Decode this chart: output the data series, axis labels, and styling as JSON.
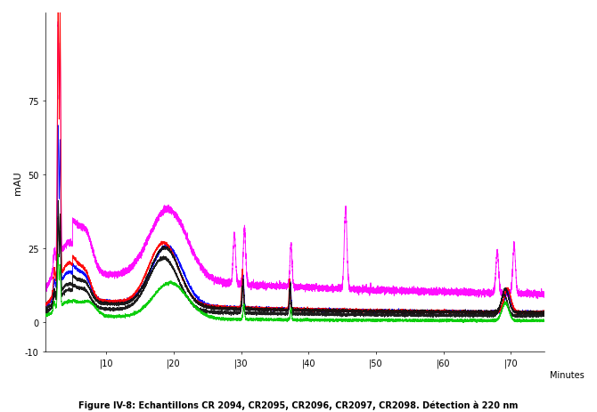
{
  "title": "Figure IV-8: Echantillons CR 2094, CR2095, CR2096, CR2097, CR2098. Détection à 220 nm",
  "xlabel": "Minutes",
  "ylabel": "mAU",
  "xlim": [
    1,
    75
  ],
  "ylim": [
    -10,
    105
  ],
  "yticks": [
    -10,
    0,
    25,
    50,
    75
  ],
  "xticks": [
    10,
    20,
    30,
    40,
    50,
    60,
    70
  ],
  "colors": {
    "CR2094": "#ff0000",
    "CR2095": "#0000ff",
    "CR2096": "#ff00ff",
    "CR2097": "#111111",
    "CR2098": "#00cc00"
  },
  "background_color": "#ffffff"
}
